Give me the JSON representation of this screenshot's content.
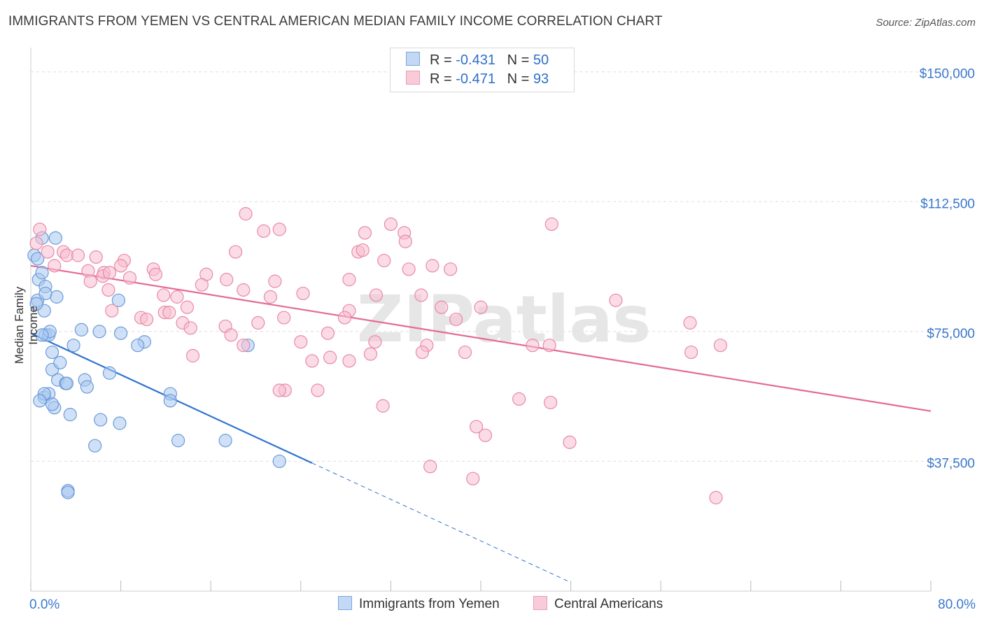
{
  "header": {
    "title": "IMMIGRANTS FROM YEMEN VS CENTRAL AMERICAN MEDIAN FAMILY INCOME CORRELATION CHART",
    "source": "Source: ZipAtlas.com"
  },
  "watermark": "ZIPatlas",
  "legend": {
    "rows": [
      {
        "r_label": "R =",
        "r_value": "-0.431",
        "n_label": "N =",
        "n_value": "50"
      },
      {
        "r_label": "R =",
        "r_value": "-0.471",
        "n_label": "N =",
        "n_value": "93"
      }
    ]
  },
  "bottom_legend": {
    "yemen": "Immigrants from Yemen",
    "central": "Central Americans"
  },
  "colors": {
    "yemen_fill": "#a9c8f0",
    "yemen_stroke": "#6a9bd8",
    "yemen_line": "#2f73d1",
    "central_fill": "#f7bed0",
    "central_stroke": "#e88aa8",
    "central_line": "#e46b96",
    "axis_text": "#3a78cc",
    "grid": "#dddddd"
  },
  "chart_data": {
    "type": "scatter",
    "title": "IMMIGRANTS FROM YEMEN VS CENTRAL AMERICAN MEDIAN FAMILY INCOME CORRELATION CHART",
    "xlabel": "",
    "ylabel": "Median Family Income",
    "x_tick_labels": [
      "0.0%",
      "80.0%"
    ],
    "y_tick_labels": [
      "$150,000",
      "$112,500",
      "$75,000",
      "$37,500"
    ],
    "y_ticks": [
      150000,
      112500,
      75000,
      37500
    ],
    "xlim": [
      0,
      80
    ],
    "ylim": [
      0,
      155000
    ],
    "grid": true,
    "legend_position": "top-center",
    "series": [
      {
        "name": "Immigrants from Yemen",
        "r": -0.431,
        "n": 50,
        "trend": {
          "x0": 0,
          "y0": 74500,
          "x1": 25,
          "y1": 37000,
          "dashed_to_x": 48
        },
        "points": [
          [
            0.3,
            97000
          ],
          [
            0.6,
            96000
          ],
          [
            2.2,
            102000
          ],
          [
            1.0,
            102000
          ],
          [
            0.7,
            90000
          ],
          [
            1.3,
            88000
          ],
          [
            2.3,
            85000
          ],
          [
            0.6,
            84000
          ],
          [
            1.3,
            86000
          ],
          [
            1.2,
            81000
          ],
          [
            7.8,
            84000
          ],
          [
            1.3,
            74000
          ],
          [
            1.6,
            74000
          ],
          [
            1.7,
            75000
          ],
          [
            4.5,
            75500
          ],
          [
            6.1,
            75000
          ],
          [
            8.0,
            74500
          ],
          [
            10.1,
            72000
          ],
          [
            9.5,
            71000
          ],
          [
            3.8,
            71000
          ],
          [
            19.3,
            71000
          ],
          [
            1.9,
            69000
          ],
          [
            7.0,
            63000
          ],
          [
            1.9,
            64000
          ],
          [
            2.4,
            61000
          ],
          [
            4.8,
            61000
          ],
          [
            3.1,
            60000
          ],
          [
            3.2,
            60000
          ],
          [
            5.0,
            59000
          ],
          [
            1.2,
            56000
          ],
          [
            1.6,
            57000
          ],
          [
            1.2,
            57000
          ],
          [
            0.8,
            55000
          ],
          [
            12.4,
            57000
          ],
          [
            12.4,
            55000
          ],
          [
            2.1,
            53000
          ],
          [
            1.9,
            54000
          ],
          [
            3.5,
            51000
          ],
          [
            6.2,
            49500
          ],
          [
            7.9,
            48500
          ],
          [
            5.7,
            42000
          ],
          [
            13.1,
            43500
          ],
          [
            17.3,
            43500
          ],
          [
            22.1,
            37500
          ],
          [
            3.3,
            29000
          ],
          [
            3.3,
            28500
          ],
          [
            1.0,
            92000
          ],
          [
            2.6,
            66000
          ],
          [
            0.5,
            83000
          ],
          [
            1.0,
            74000
          ]
        ]
      },
      {
        "name": "Central Americans",
        "r": -0.471,
        "n": 93,
        "trend": {
          "x0": 0,
          "y0": 94000,
          "x1": 80,
          "y1": 52000
        },
        "points": [
          [
            0.8,
            104500
          ],
          [
            0.5,
            100500
          ],
          [
            1.5,
            98000
          ],
          [
            2.9,
            98000
          ],
          [
            3.2,
            97000
          ],
          [
            4.2,
            97000
          ],
          [
            5.8,
            96500
          ],
          [
            8.3,
            95500
          ],
          [
            2.1,
            94000
          ],
          [
            8.0,
            94000
          ],
          [
            10.9,
            93000
          ],
          [
            5.1,
            92500
          ],
          [
            6.5,
            92000
          ],
          [
            6.4,
            91000
          ],
          [
            11.1,
            91500
          ],
          [
            7.0,
            92000
          ],
          [
            8.8,
            90500
          ],
          [
            15.6,
            91500
          ],
          [
            17.4,
            90000
          ],
          [
            5.3,
            89500
          ],
          [
            21.7,
            89500
          ],
          [
            15.2,
            88500
          ],
          [
            6.9,
            87000
          ],
          [
            18.9,
            87000
          ],
          [
            24.2,
            86000
          ],
          [
            11.8,
            85500
          ],
          [
            13.0,
            85000
          ],
          [
            21.3,
            85000
          ],
          [
            30.7,
            85500
          ],
          [
            34.7,
            85500
          ],
          [
            36.5,
            82000
          ],
          [
            40.0,
            82000
          ],
          [
            13.9,
            82000
          ],
          [
            7.2,
            81000
          ],
          [
            11.9,
            80500
          ],
          [
            12.3,
            80500
          ],
          [
            28.3,
            81000
          ],
          [
            9.8,
            79000
          ],
          [
            10.3,
            78500
          ],
          [
            22.5,
            79000
          ],
          [
            27.9,
            79000
          ],
          [
            37.8,
            78500
          ],
          [
            13.5,
            77500
          ],
          [
            17.3,
            76500
          ],
          [
            20.2,
            77500
          ],
          [
            14.2,
            76000
          ],
          [
            26.4,
            74500
          ],
          [
            17.8,
            74000
          ],
          [
            24.0,
            72000
          ],
          [
            30.6,
            72000
          ],
          [
            18.9,
            71000
          ],
          [
            35.2,
            71000
          ],
          [
            44.6,
            71000
          ],
          [
            46.1,
            71000
          ],
          [
            61.3,
            71000
          ],
          [
            38.6,
            69000
          ],
          [
            30.2,
            68500
          ],
          [
            34.8,
            69000
          ],
          [
            58.7,
            69000
          ],
          [
            14.4,
            68000
          ],
          [
            26.6,
            67500
          ],
          [
            28.3,
            66500
          ],
          [
            25.0,
            66500
          ],
          [
            22.6,
            58000
          ],
          [
            25.5,
            58000
          ],
          [
            22.1,
            58000
          ],
          [
            43.4,
            55500
          ],
          [
            46.2,
            54500
          ],
          [
            31.3,
            53500
          ],
          [
            39.6,
            47500
          ],
          [
            40.4,
            45000
          ],
          [
            47.9,
            43000
          ],
          [
            35.5,
            36000
          ],
          [
            39.3,
            32500
          ],
          [
            60.9,
            27000
          ],
          [
            19.1,
            109000
          ],
          [
            22.1,
            104500
          ],
          [
            20.7,
            104000
          ],
          [
            29.7,
            103500
          ],
          [
            32.0,
            106000
          ],
          [
            33.2,
            103500
          ],
          [
            33.3,
            101000
          ],
          [
            46.3,
            106000
          ],
          [
            29.1,
            98000
          ],
          [
            29.5,
            98500
          ],
          [
            35.7,
            94000
          ],
          [
            37.3,
            93000
          ],
          [
            33.6,
            93000
          ],
          [
            31.4,
            95500
          ],
          [
            18.2,
            98000
          ],
          [
            28.3,
            90000
          ],
          [
            52.0,
            84000
          ],
          [
            58.6,
            77500
          ]
        ]
      }
    ]
  }
}
